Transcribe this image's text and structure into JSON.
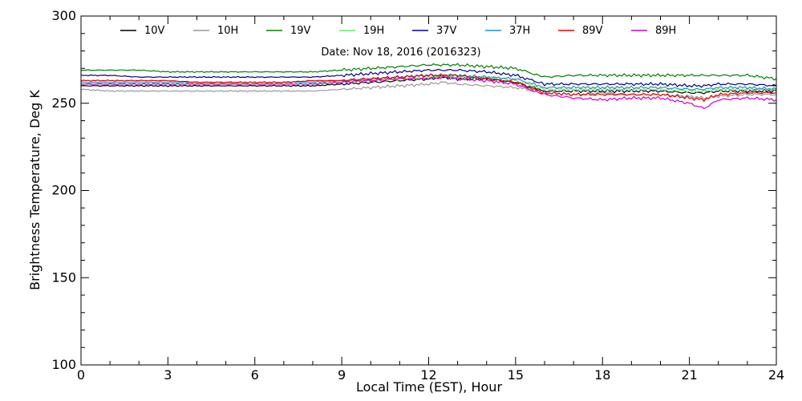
{
  "chart_data": {
    "type": "line",
    "title": "",
    "annotation": "Date: Nov 18, 2016 (2016323)",
    "xlabel": "Local Time (EST), Hour",
    "ylabel": "Brightness Temperature, Deg K",
    "xlim": [
      0,
      24
    ],
    "ylim": [
      100,
      300
    ],
    "xticks": [
      0,
      3,
      6,
      9,
      12,
      15,
      18,
      21,
      24
    ],
    "yticks": [
      100,
      150,
      200,
      250,
      300
    ],
    "grid": false,
    "legend_placement": "top",
    "x": [
      0,
      1,
      2,
      3,
      4,
      5,
      6,
      7,
      8,
      9,
      10,
      11,
      12,
      12.5,
      13,
      14,
      15,
      15.8,
      16,
      17,
      18,
      19,
      20,
      21,
      21.5,
      22,
      23,
      24
    ],
    "series": [
      {
        "name": "10V",
        "color": "#000000",
        "values": [
          260,
          260,
          260,
          260,
          260,
          260,
          260,
          260,
          260,
          261,
          262,
          263,
          264,
          265,
          264,
          264,
          262,
          258,
          257,
          257,
          257,
          257,
          257,
          256,
          256,
          257,
          257,
          257
        ]
      },
      {
        "name": "10H",
        "color": "#999999",
        "values": [
          258,
          257,
          257,
          257,
          257,
          257,
          257,
          257,
          257,
          258,
          259,
          260,
          261,
          262,
          261,
          260,
          259,
          257,
          256,
          255,
          256,
          255,
          255,
          254,
          253,
          254,
          255,
          255
        ]
      },
      {
        "name": "19V",
        "color": "#008000",
        "values": [
          269,
          269,
          269,
          268,
          268,
          268,
          268,
          268,
          268,
          269,
          270,
          271,
          272,
          272,
          272,
          271,
          270,
          266,
          265,
          266,
          266,
          266,
          266,
          266,
          266,
          266,
          266,
          264
        ]
      },
      {
        "name": "19H",
        "color": "#66ee66",
        "values": [
          261,
          261,
          261,
          261,
          261,
          261,
          261,
          261,
          261,
          262,
          263,
          264,
          265,
          266,
          265,
          265,
          263,
          259,
          258,
          258,
          258,
          258,
          258,
          257,
          257,
          258,
          258,
          258
        ]
      },
      {
        "name": "37V",
        "color": "#00008b",
        "values": [
          266,
          266,
          265,
          265,
          265,
          265,
          265,
          265,
          265,
          266,
          267,
          268,
          269,
          269,
          269,
          268,
          266,
          262,
          261,
          261,
          261,
          261,
          261,
          260,
          260,
          261,
          261,
          260
        ]
      },
      {
        "name": "37H",
        "color": "#1e90c8",
        "values": [
          262,
          262,
          262,
          262,
          262,
          262,
          262,
          262,
          262,
          263,
          264,
          265,
          266,
          266,
          266,
          265,
          264,
          260,
          259,
          259,
          259,
          259,
          259,
          258,
          258,
          259,
          259,
          258
        ]
      },
      {
        "name": "89V",
        "color": "#e60000",
        "values": [
          263,
          263,
          263,
          263,
          262,
          262,
          262,
          262,
          263,
          263,
          264,
          265,
          266,
          266,
          266,
          264,
          262,
          257,
          256,
          255,
          255,
          255,
          255,
          253,
          252,
          255,
          256,
          256
        ]
      },
      {
        "name": "89H",
        "color": "#cc00cc",
        "values": [
          261,
          261,
          261,
          261,
          261,
          261,
          261,
          261,
          261,
          262,
          263,
          264,
          264,
          265,
          264,
          263,
          261,
          256,
          255,
          253,
          252,
          253,
          253,
          250,
          247,
          252,
          253,
          252
        ]
      }
    ]
  }
}
